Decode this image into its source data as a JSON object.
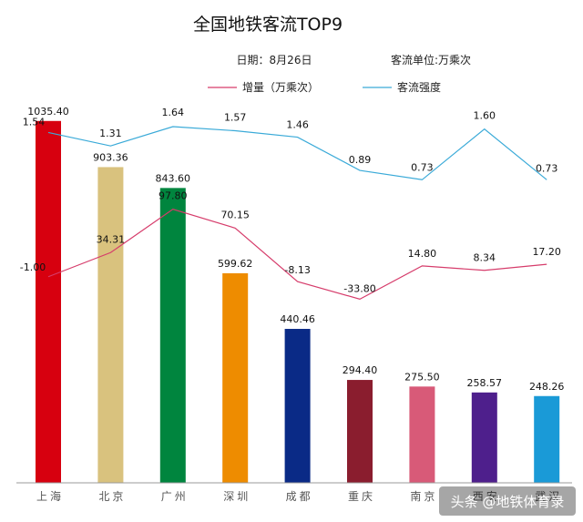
{
  "chart_data": {
    "type": "bar",
    "title": "全国地铁客流TOP9",
    "date_text": "日期：8月26日",
    "unit_text": "客流单位:万乘次",
    "categories": [
      "上海",
      "北京",
      "广州",
      "深圳",
      "成都",
      "重庆",
      "南京",
      "西安",
      "武汉"
    ],
    "series": [
      {
        "name": "客流",
        "kind": "bar",
        "values": [
          1035.4,
          903.36,
          843.6,
          599.62,
          440.46,
          294.4,
          275.5,
          258.57,
          248.26
        ],
        "labels": [
          "1035.40",
          "903.36",
          "843.60",
          "599.62",
          "440.46",
          "294.40",
          "275.50",
          "258.57",
          "248.26"
        ],
        "colors": [
          "#d7000f",
          "#d9c27e",
          "#00853e",
          "#ee8c00",
          "#0a2a86",
          "#8a1d2e",
          "#d85a78",
          "#4e1f8c",
          "#1a9ad7"
        ]
      },
      {
        "name": "增量（万乘次）",
        "kind": "line",
        "color": "#d63c6b",
        "values": [
          -1.0,
          34.31,
          97.8,
          70.15,
          -8.13,
          -33.8,
          14.8,
          8.34,
          17.2
        ],
        "labels": [
          "-1.00",
          "34.31",
          "97.80",
          "70.15",
          "-8.13",
          "-33.80",
          "14.80",
          "8.34",
          "17.20"
        ]
      },
      {
        "name": "客流强度",
        "kind": "line",
        "color": "#3aaad8",
        "values": [
          1.54,
          1.31,
          1.64,
          1.57,
          1.46,
          0.89,
          0.73,
          1.6,
          0.73
        ],
        "labels": [
          "1.54",
          "1.31",
          "1.64",
          "1.57",
          "1.46",
          "0.89",
          "0.73",
          "1.60",
          "0.73"
        ]
      }
    ],
    "bar_ylim": [
      0,
      1100
    ],
    "increment_ylim": [
      -100,
      200
    ],
    "intensity_ylim": [
      -3,
      2
    ],
    "legend_position": "top",
    "grid": false
  },
  "watermark": "头条 @地铁体育录"
}
